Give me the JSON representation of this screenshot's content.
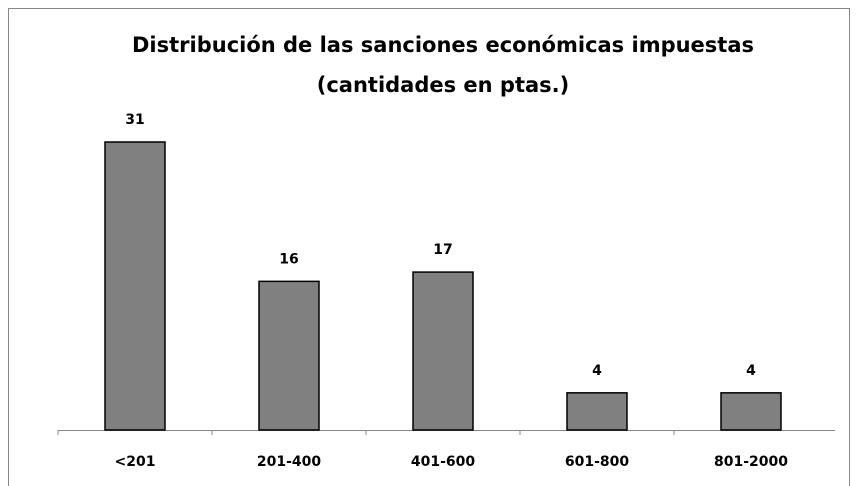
{
  "chart_data": {
    "type": "bar",
    "title": [
      "Distribución de las sanciones económicas impuestas",
      "(cantidades en ptas.)"
    ],
    "categories": [
      "<201",
      "201-400",
      "401-600",
      "601-800",
      "801-2000"
    ],
    "values": [
      31,
      16,
      17,
      4,
      4
    ],
    "color": "#808080"
  }
}
